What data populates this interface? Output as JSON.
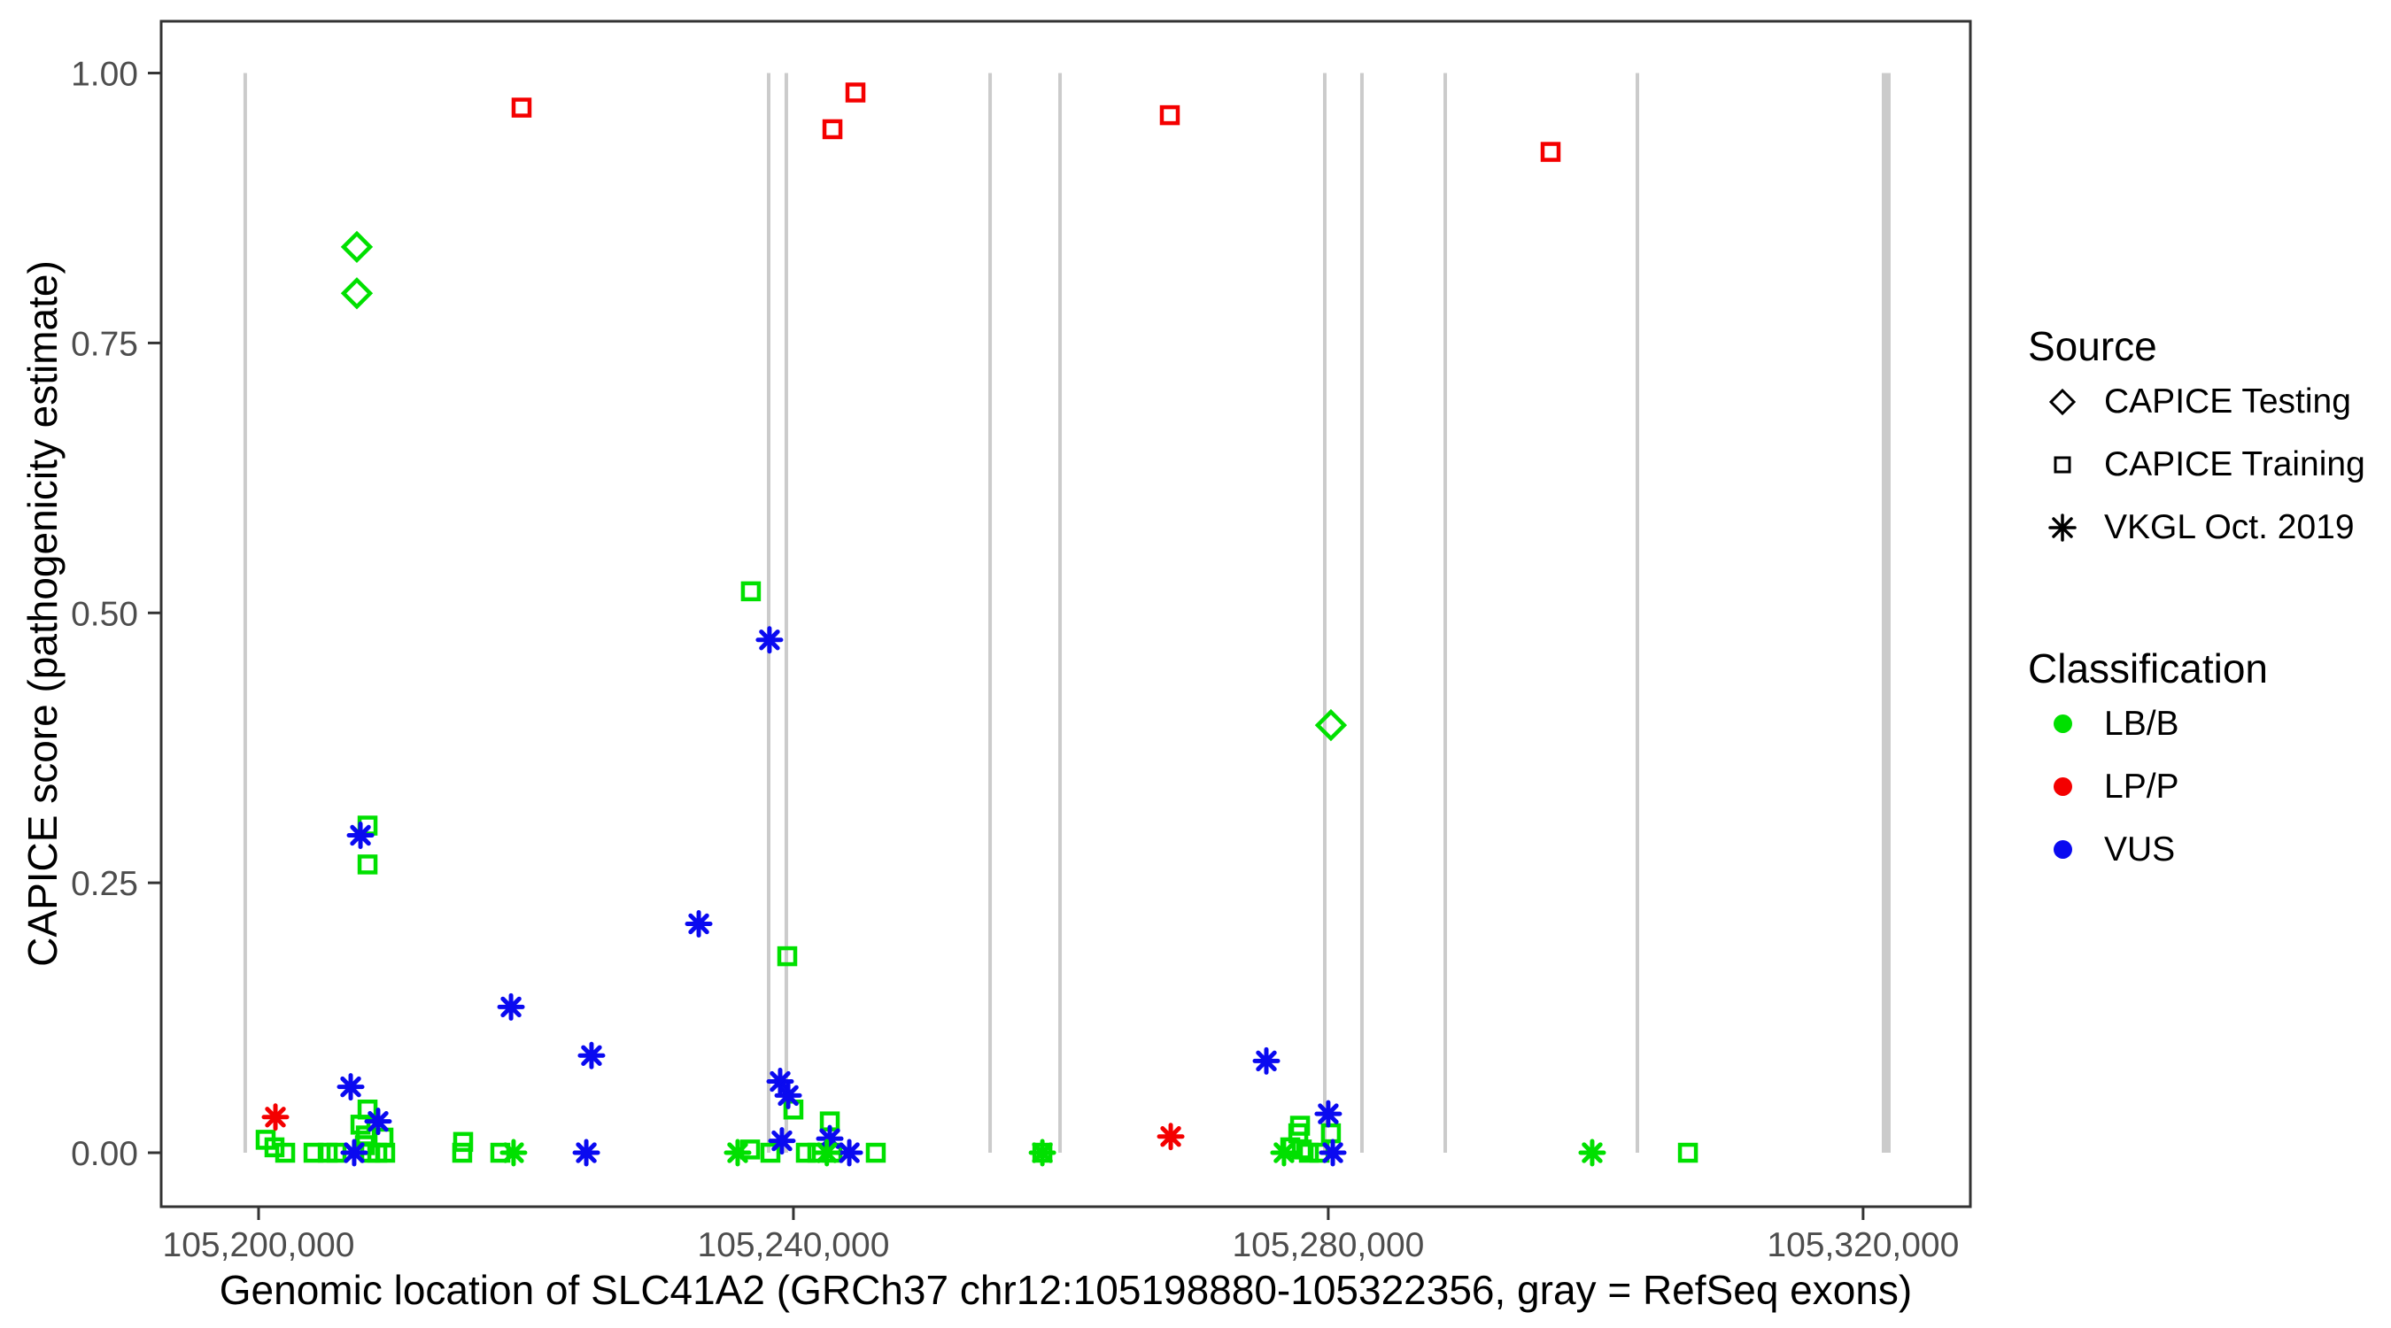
{
  "legend": {
    "source": {
      "title": "Source",
      "items": [
        {
          "symbol": "diamond",
          "label": "CAPICE Testing"
        },
        {
          "symbol": "square",
          "label": "CAPICE Training"
        },
        {
          "symbol": "asterisk",
          "label": "VKGL Oct. 2019"
        }
      ]
    },
    "classification": {
      "title": "Classification",
      "items": [
        {
          "color": "#00E000",
          "label": "LB/B"
        },
        {
          "color": "#F40000",
          "label": "LP/P"
        },
        {
          "color": "#0A0AF0",
          "label": "VUS"
        }
      ]
    }
  },
  "chart_data": {
    "type": "scatter",
    "title": "",
    "xlabel": "Genomic location of SLC41A2 (GRCh37 chr12:105198880-105322356, gray = RefSeq exons)",
    "ylabel": "CAPICE score (pathogenicity estimate)",
    "xlim": [
      105192715,
      105328023
    ],
    "ylim": [
      -0.05,
      1.048
    ],
    "grid": false,
    "legend_position": "right",
    "x_ticks": [
      {
        "value": 105200000,
        "label": "105,200,000"
      },
      {
        "value": 105240000,
        "label": "105,240,000"
      },
      {
        "value": 105280000,
        "label": "105,280,000"
      },
      {
        "value": 105320000,
        "label": "105,320,000"
      }
    ],
    "y_ticks": [
      {
        "value": 0.0,
        "label": "0.00"
      },
      {
        "value": 0.25,
        "label": "0.25"
      },
      {
        "value": 0.5,
        "label": "0.50"
      },
      {
        "value": 0.75,
        "label": "0.75"
      },
      {
        "value": 1.0,
        "label": "1.00"
      }
    ],
    "colors": {
      "LB/B": "#00E000",
      "LP/P": "#F40000",
      "VUS": "#0A0AF0"
    },
    "shapes": {
      "CAPICE Testing": "diamond",
      "CAPICE Training": "square",
      "VKGL Oct. 2019": "asterisk"
    },
    "exon_color": "#CBCBCB",
    "exons_bp": [
      105199000,
      105238150,
      105239470,
      105254710,
      105259940,
      105279740,
      105282520,
      105288750,
      105303120
    ],
    "thick_exon_bp": 105321730,
    "points": [
      {
        "bp": 105207350,
        "score": 0.839,
        "source": "CAPICE Testing",
        "classification": "LB/B"
      },
      {
        "bp": 105207350,
        "score": 0.796,
        "source": "CAPICE Testing",
        "classification": "LB/B"
      },
      {
        "bp": 105280200,
        "score": 0.396,
        "source": "CAPICE Testing",
        "classification": "LB/B"
      },
      {
        "bp": 105219670,
        "score": 0.968,
        "source": "CAPICE Training",
        "classification": "LP/P"
      },
      {
        "bp": 105242920,
        "score": 0.948,
        "source": "CAPICE Training",
        "classification": "LP/P"
      },
      {
        "bp": 105244640,
        "score": 0.982,
        "source": "CAPICE Training",
        "classification": "LP/P"
      },
      {
        "bp": 105268150,
        "score": 0.961,
        "source": "CAPICE Training",
        "classification": "LP/P"
      },
      {
        "bp": 105296630,
        "score": 0.927,
        "source": "CAPICE Training",
        "classification": "LP/P"
      },
      {
        "bp": 105208150,
        "score": 0.303,
        "source": "CAPICE Training",
        "classification": "LB/B"
      },
      {
        "bp": 105208150,
        "score": 0.267,
        "source": "CAPICE Training",
        "classification": "LB/B"
      },
      {
        "bp": 105236820,
        "score": 0.52,
        "source": "CAPICE Training",
        "classification": "LB/B"
      },
      {
        "bp": 105239540,
        "score": 0.182,
        "source": "CAPICE Training",
        "classification": "LB/B"
      },
      {
        "bp": 105240000,
        "score": 0.04,
        "source": "CAPICE Training",
        "classification": "LB/B"
      },
      {
        "bp": 105242720,
        "score": 0.029,
        "source": "CAPICE Training",
        "classification": "LB/B"
      },
      {
        "bp": 105208150,
        "score": 0.04,
        "source": "CAPICE Training",
        "classification": "LB/B"
      },
      {
        "bp": 105207620,
        "score": 0.026,
        "source": "CAPICE Training",
        "classification": "LB/B"
      },
      {
        "bp": 105208020,
        "score": 0.016,
        "source": "CAPICE Training",
        "classification": "LB/B"
      },
      {
        "bp": 105209340,
        "score": 0.014,
        "source": "CAPICE Training",
        "classification": "LB/B"
      },
      {
        "bp": 105207950,
        "score": 0.007,
        "source": "CAPICE Training",
        "classification": "LB/B"
      },
      {
        "bp": 105208350,
        "score": 0.0,
        "source": "CAPICE Training",
        "classification": "LB/B"
      },
      {
        "bp": 105209470,
        "score": 0.0,
        "source": "CAPICE Training",
        "classification": "LB/B"
      },
      {
        "bp": 105208880,
        "score": 0.0,
        "source": "CAPICE Training",
        "classification": "LB/B"
      },
      {
        "bp": 105200530,
        "score": 0.012,
        "source": "CAPICE Training",
        "classification": "LB/B"
      },
      {
        "bp": 105201190,
        "score": 0.005,
        "source": "CAPICE Training",
        "classification": "LB/B"
      },
      {
        "bp": 105201990,
        "score": 0.0,
        "source": "CAPICE Training",
        "classification": "LB/B"
      },
      {
        "bp": 105204110,
        "score": 0.0,
        "source": "CAPICE Training",
        "classification": "LB/B"
      },
      {
        "bp": 105205170,
        "score": 0.0,
        "source": "CAPICE Training",
        "classification": "LB/B"
      },
      {
        "bp": 105205830,
        "score": 0.0,
        "source": "CAPICE Training",
        "classification": "LB/B"
      },
      {
        "bp": 105215300,
        "score": 0.01,
        "source": "CAPICE Training",
        "classification": "LB/B"
      },
      {
        "bp": 105215230,
        "score": 0.0,
        "source": "CAPICE Training",
        "classification": "LB/B"
      },
      {
        "bp": 105218080,
        "score": 0.0,
        "source": "CAPICE Training",
        "classification": "LB/B"
      },
      {
        "bp": 105236760,
        "score": 0.003,
        "source": "CAPICE Training",
        "classification": "LB/B"
      },
      {
        "bp": 105238280,
        "score": 0.0,
        "source": "CAPICE Training",
        "classification": "LB/B"
      },
      {
        "bp": 105240930,
        "score": 0.0,
        "source": "CAPICE Training",
        "classification": "LB/B"
      },
      {
        "bp": 105241790,
        "score": 0.0,
        "source": "CAPICE Training",
        "classification": "LB/B"
      },
      {
        "bp": 105242920,
        "score": 0.0,
        "source": "CAPICE Training",
        "classification": "LB/B"
      },
      {
        "bp": 105246160,
        "score": 0.0,
        "source": "CAPICE Training",
        "classification": "LB/B"
      },
      {
        "bp": 105258620,
        "score": 0.0,
        "source": "CAPICE Training",
        "classification": "LB/B"
      },
      {
        "bp": 105277890,
        "score": 0.025,
        "source": "CAPICE Training",
        "classification": "LB/B"
      },
      {
        "bp": 105277760,
        "score": 0.018,
        "source": "CAPICE Training",
        "classification": "LB/B"
      },
      {
        "bp": 105280200,
        "score": 0.018,
        "source": "CAPICE Training",
        "classification": "LB/B"
      },
      {
        "bp": 105277160,
        "score": 0.005,
        "source": "CAPICE Training",
        "classification": "LB/B"
      },
      {
        "bp": 105278020,
        "score": 0.003,
        "source": "CAPICE Training",
        "classification": "LB/B"
      },
      {
        "bp": 105278550,
        "score": 0.0,
        "source": "CAPICE Training",
        "classification": "LB/B"
      },
      {
        "bp": 105279350,
        "score": 0.0,
        "source": "CAPICE Training",
        "classification": "LB/B"
      },
      {
        "bp": 105306900,
        "score": 0.0,
        "source": "CAPICE Training",
        "classification": "LB/B"
      },
      {
        "bp": 105201260,
        "score": 0.033,
        "source": "VKGL Oct. 2019",
        "classification": "LP/P"
      },
      {
        "bp": 105268220,
        "score": 0.015,
        "source": "VKGL Oct. 2019",
        "classification": "LP/P"
      },
      {
        "bp": 105207620,
        "score": 0.294,
        "source": "VKGL Oct. 2019",
        "classification": "VUS"
      },
      {
        "bp": 105206890,
        "score": 0.061,
        "source": "VKGL Oct. 2019",
        "classification": "VUS"
      },
      {
        "bp": 105208940,
        "score": 0.029,
        "source": "VKGL Oct. 2019",
        "classification": "VUS"
      },
      {
        "bp": 105207150,
        "score": 0.0,
        "source": "VKGL Oct. 2019",
        "classification": "VUS"
      },
      {
        "bp": 105218880,
        "score": 0.135,
        "source": "VKGL Oct. 2019",
        "classification": "VUS"
      },
      {
        "bp": 105224900,
        "score": 0.09,
        "source": "VKGL Oct. 2019",
        "classification": "VUS"
      },
      {
        "bp": 105224510,
        "score": 0.0,
        "source": "VKGL Oct. 2019",
        "classification": "VUS"
      },
      {
        "bp": 105232920,
        "score": 0.212,
        "source": "VKGL Oct. 2019",
        "classification": "VUS"
      },
      {
        "bp": 105238210,
        "score": 0.475,
        "source": "VKGL Oct. 2019",
        "classification": "VUS"
      },
      {
        "bp": 105239010,
        "score": 0.066,
        "source": "VKGL Oct. 2019",
        "classification": "VUS"
      },
      {
        "bp": 105239610,
        "score": 0.053,
        "source": "VKGL Oct. 2019",
        "classification": "VUS"
      },
      {
        "bp": 105239140,
        "score": 0.011,
        "source": "VKGL Oct. 2019",
        "classification": "VUS"
      },
      {
        "bp": 105242720,
        "score": 0.013,
        "source": "VKGL Oct. 2019",
        "classification": "VUS"
      },
      {
        "bp": 105244180,
        "score": 0.0,
        "source": "VKGL Oct. 2019",
        "classification": "VUS"
      },
      {
        "bp": 105275370,
        "score": 0.085,
        "source": "VKGL Oct. 2019",
        "classification": "VUS"
      },
      {
        "bp": 105280000,
        "score": 0.036,
        "source": "VKGL Oct. 2019",
        "classification": "VUS"
      },
      {
        "bp": 105280340,
        "score": 0.0,
        "source": "VKGL Oct. 2019",
        "classification": "VUS"
      },
      {
        "bp": 105219070,
        "score": 0.0,
        "source": "VKGL Oct. 2019",
        "classification": "LB/B"
      },
      {
        "bp": 105235830,
        "score": 0.0,
        "source": "VKGL Oct. 2019",
        "classification": "LB/B"
      },
      {
        "bp": 105242500,
        "score": 0.0,
        "source": "VKGL Oct. 2019",
        "classification": "LB/B"
      },
      {
        "bp": 105258620,
        "score": 0.0,
        "source": "VKGL Oct. 2019",
        "classification": "LB/B"
      },
      {
        "bp": 105276690,
        "score": 0.0,
        "source": "VKGL Oct. 2019",
        "classification": "LB/B"
      },
      {
        "bp": 105299740,
        "score": 0.0,
        "source": "VKGL Oct. 2019",
        "classification": "LB/B"
      }
    ]
  }
}
